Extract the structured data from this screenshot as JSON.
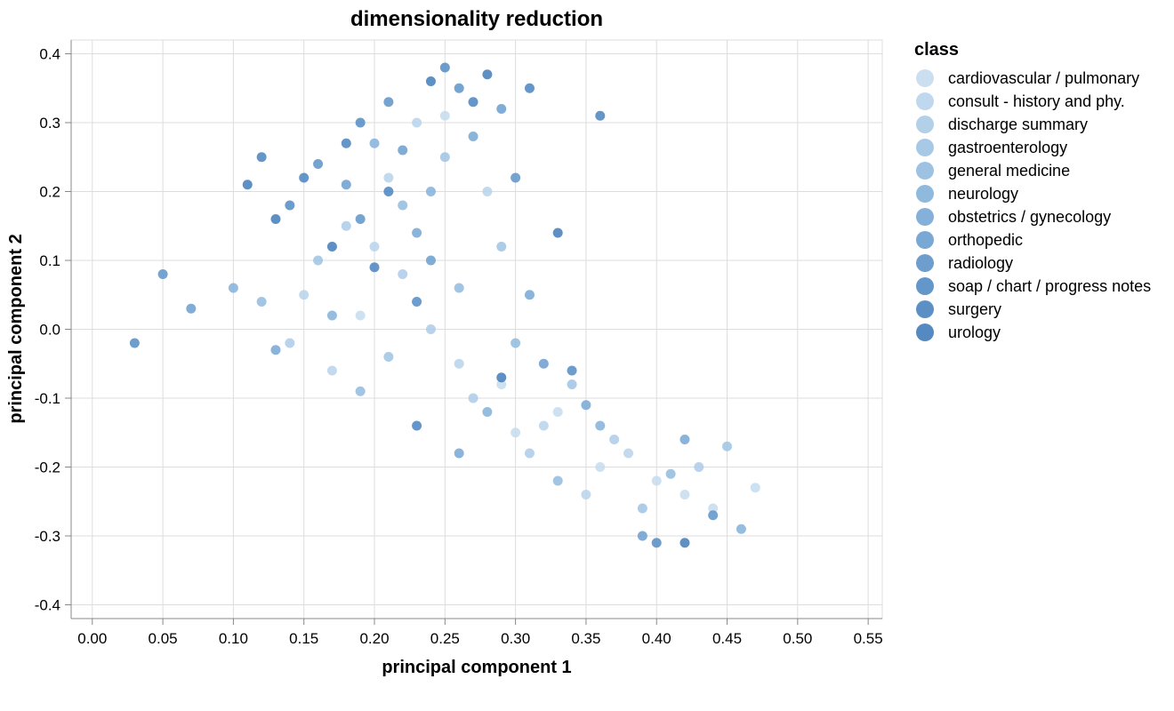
{
  "chart_data": {
    "type": "scatter",
    "title": "dimensionality reduction",
    "xlabel": "principal component 1",
    "ylabel": "principal component 2",
    "xlim": [
      -0.015,
      0.56
    ],
    "ylim": [
      -0.42,
      0.42
    ],
    "x_ticks": [
      "0.00",
      "0.05",
      "0.10",
      "0.15",
      "0.20",
      "0.25",
      "0.30",
      "0.35",
      "0.40",
      "0.45",
      "0.50",
      "0.55"
    ],
    "y_ticks": [
      "0.4",
      "0.3",
      "0.2",
      "0.1",
      "0.0",
      "-0.1",
      "-0.2",
      "-0.3",
      "-0.4"
    ],
    "grid": true,
    "legend": {
      "title": "class",
      "position": "right"
    },
    "series": [
      {
        "name": "cardiovascular / pulmonary",
        "color": "#c6dcef",
        "points": [
          [
            0.42,
            -0.24
          ],
          [
            0.3,
            -0.15
          ],
          [
            0.36,
            -0.2
          ],
          [
            0.44,
            -0.26
          ],
          [
            0.33,
            -0.12
          ],
          [
            0.25,
            0.31
          ],
          [
            0.19,
            0.02
          ],
          [
            0.4,
            -0.22
          ],
          [
            0.47,
            -0.23
          ],
          [
            0.29,
            -0.08
          ]
        ]
      },
      {
        "name": "consult - history and phy.",
        "color": "#b9d4eb",
        "points": [
          [
            0.2,
            0.12
          ],
          [
            0.23,
            0.3
          ],
          [
            0.28,
            0.2
          ],
          [
            0.15,
            0.05
          ],
          [
            0.26,
            -0.05
          ],
          [
            0.32,
            -0.14
          ],
          [
            0.38,
            -0.18
          ],
          [
            0.17,
            -0.06
          ],
          [
            0.21,
            0.22
          ],
          [
            0.35,
            -0.24
          ]
        ]
      },
      {
        "name": "discharge summary",
        "color": "#abcbe7",
        "points": [
          [
            0.24,
            0.0
          ],
          [
            0.27,
            -0.1
          ],
          [
            0.31,
            -0.18
          ],
          [
            0.22,
            0.08
          ],
          [
            0.18,
            0.15
          ],
          [
            0.37,
            -0.16
          ],
          [
            0.43,
            -0.2
          ],
          [
            0.14,
            -0.02
          ]
        ]
      },
      {
        "name": "gastroenterology",
        "color": "#9fc3e3",
        "points": [
          [
            0.25,
            0.25
          ],
          [
            0.29,
            0.12
          ],
          [
            0.34,
            -0.08
          ],
          [
            0.39,
            -0.26
          ],
          [
            0.16,
            0.1
          ],
          [
            0.21,
            -0.04
          ],
          [
            0.45,
            -0.17
          ]
        ]
      },
      {
        "name": "general medicine",
        "color": "#93bbdf",
        "points": [
          [
            0.22,
            0.18
          ],
          [
            0.26,
            0.06
          ],
          [
            0.3,
            -0.02
          ],
          [
            0.41,
            -0.21
          ],
          [
            0.12,
            0.04
          ],
          [
            0.19,
            -0.09
          ],
          [
            0.33,
            -0.22
          ]
        ]
      },
      {
        "name": "neurology",
        "color": "#84b1da",
        "points": [
          [
            0.2,
            0.27
          ],
          [
            0.24,
            0.2
          ],
          [
            0.17,
            0.02
          ],
          [
            0.28,
            -0.12
          ],
          [
            0.36,
            -0.14
          ],
          [
            0.1,
            0.06
          ],
          [
            0.46,
            -0.29
          ]
        ]
      },
      {
        "name": "obstetrics / gynecology",
        "color": "#77a7d5",
        "points": [
          [
            0.23,
            0.14
          ],
          [
            0.27,
            0.28
          ],
          [
            0.31,
            0.05
          ],
          [
            0.35,
            -0.11
          ],
          [
            0.26,
            -0.18
          ],
          [
            0.13,
            -0.03
          ],
          [
            0.42,
            -0.16
          ]
        ]
      },
      {
        "name": "orthopedic",
        "color": "#6a9ecf",
        "points": [
          [
            0.18,
            0.21
          ],
          [
            0.22,
            0.26
          ],
          [
            0.29,
            0.32
          ],
          [
            0.24,
            0.1
          ],
          [
            0.32,
            -0.05
          ],
          [
            0.07,
            0.03
          ],
          [
            0.39,
            -0.3
          ]
        ]
      },
      {
        "name": "radiology",
        "color": "#5d94c9",
        "points": [
          [
            0.16,
            0.24
          ],
          [
            0.21,
            0.33
          ],
          [
            0.26,
            0.35
          ],
          [
            0.19,
            0.16
          ],
          [
            0.3,
            0.22
          ],
          [
            0.05,
            0.08
          ],
          [
            0.44,
            -0.27
          ]
        ]
      },
      {
        "name": "soap / chart / progress notes",
        "color": "#528cc4",
        "points": [
          [
            0.14,
            0.18
          ],
          [
            0.19,
            0.3
          ],
          [
            0.25,
            0.38
          ],
          [
            0.23,
            0.04
          ],
          [
            0.34,
            -0.06
          ],
          [
            0.03,
            -0.02
          ],
          [
            0.4,
            -0.31
          ]
        ]
      },
      {
        "name": "surgery",
        "color": "#4a84bf",
        "points": [
          [
            0.15,
            0.22
          ],
          [
            0.18,
            0.27
          ],
          [
            0.21,
            0.2
          ],
          [
            0.27,
            0.33
          ],
          [
            0.12,
            0.25
          ],
          [
            0.31,
            0.35
          ],
          [
            0.2,
            0.09
          ],
          [
            0.36,
            0.31
          ],
          [
            0.23,
            -0.14
          ]
        ]
      },
      {
        "name": "urology",
        "color": "#427dba",
        "points": [
          [
            0.13,
            0.16
          ],
          [
            0.17,
            0.12
          ],
          [
            0.24,
            0.36
          ],
          [
            0.28,
            0.37
          ],
          [
            0.11,
            0.21
          ],
          [
            0.33,
            0.14
          ],
          [
            0.29,
            -0.07
          ],
          [
            0.42,
            -0.31
          ]
        ]
      }
    ]
  }
}
